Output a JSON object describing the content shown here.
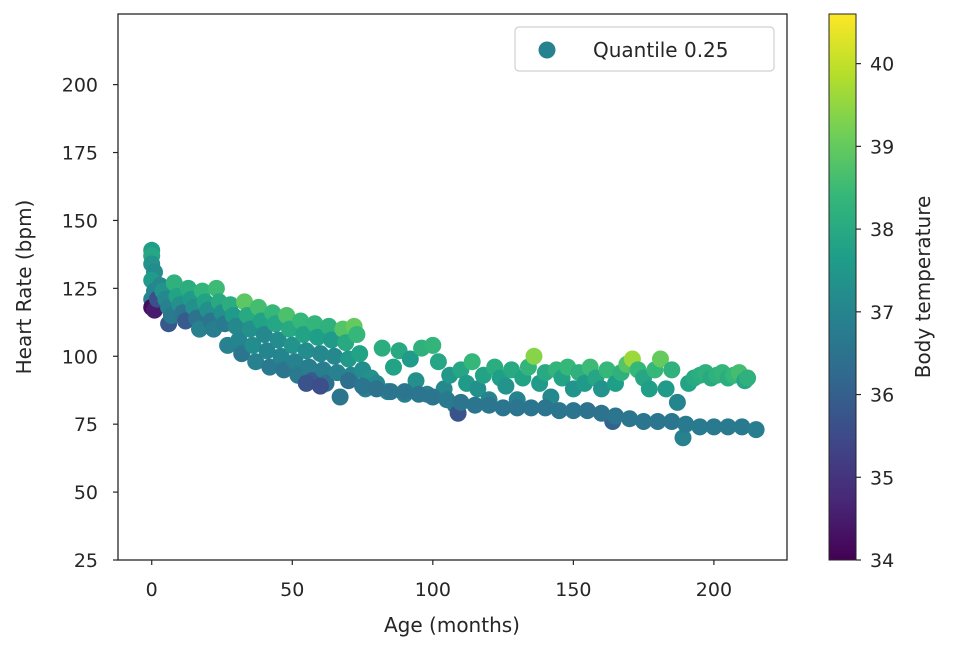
{
  "chart_data": {
    "type": "scatter",
    "title": "",
    "xlabel": "Age (months)",
    "ylabel": "Heart Rate (bpm)",
    "xlim": [
      -12,
      226
    ],
    "ylim": [
      25,
      226
    ],
    "xticks": [
      0,
      50,
      100,
      150,
      200
    ],
    "yticks": [
      25,
      50,
      75,
      100,
      125,
      150,
      175,
      200
    ],
    "legend": {
      "label": "Quantile 0.25",
      "placement": "top-right"
    },
    "colorbar": {
      "label": "Body temperature",
      "min": 34,
      "max": 40.6,
      "ticks": [
        34,
        35,
        36,
        37,
        38,
        39,
        40
      ],
      "colormap": "viridis"
    },
    "colors": {
      "viridis": [
        "#440154",
        "#482878",
        "#3e4989",
        "#31688e",
        "#26828e",
        "#1f9e89",
        "#35b779",
        "#6ece58",
        "#b5de2b",
        "#fde725"
      ],
      "axis": "#262626",
      "legend_marker": "#26828e"
    },
    "points": [
      [
        0,
        139,
        37.7
      ],
      [
        0,
        137,
        37.9
      ],
      [
        0,
        134,
        37.4
      ],
      [
        1,
        131,
        37.2
      ],
      [
        0,
        128,
        37.6
      ],
      [
        1,
        124,
        37.0
      ],
      [
        0,
        121,
        36.9
      ],
      [
        0,
        118,
        34.2
      ],
      [
        1,
        117,
        34.5
      ],
      [
        2,
        121,
        35.6
      ],
      [
        3,
        126,
        37.1
      ],
      [
        4,
        124,
        37.4
      ],
      [
        5,
        121,
        37.1
      ],
      [
        6,
        118,
        36.9
      ],
      [
        6,
        112,
        35.8
      ],
      [
        7,
        115,
        36.7
      ],
      [
        8,
        127,
        38.2
      ],
      [
        9,
        122,
        37.8
      ],
      [
        10,
        119,
        37.3
      ],
      [
        11,
        116,
        36.6
      ],
      [
        12,
        113,
        35.9
      ],
      [
        13,
        125,
        38.1
      ],
      [
        14,
        121,
        37.6
      ],
      [
        15,
        118,
        37.3
      ],
      [
        16,
        114,
        36.5
      ],
      [
        17,
        110,
        36.9
      ],
      [
        18,
        124,
        38.3
      ],
      [
        19,
        120,
        37.8
      ],
      [
        20,
        117,
        37.3
      ],
      [
        21,
        113,
        36.6
      ],
      [
        22,
        110,
        36.8
      ],
      [
        23,
        125,
        38.5
      ],
      [
        24,
        120,
        38.0
      ],
      [
        25,
        116,
        37.3
      ],
      [
        26,
        112,
        36.7
      ],
      [
        27,
        104,
        36.9
      ],
      [
        28,
        119,
        38.1
      ],
      [
        29,
        115,
        37.6
      ],
      [
        30,
        111,
        37.1
      ],
      [
        31,
        106,
        37.0
      ],
      [
        32,
        101,
        36.6
      ],
      [
        33,
        120,
        38.9
      ],
      [
        34,
        115,
        38.0
      ],
      [
        35,
        110,
        37.3
      ],
      [
        36,
        104,
        37.2
      ],
      [
        37,
        98,
        36.9
      ],
      [
        38,
        118,
        38.6
      ],
      [
        39,
        113,
        37.8
      ],
      [
        40,
        108,
        37.1
      ],
      [
        41,
        102,
        37.0
      ],
      [
        42,
        96,
        36.7
      ],
      [
        43,
        116,
        38.4
      ],
      [
        44,
        112,
        37.9
      ],
      [
        45,
        106,
        37.2
      ],
      [
        46,
        100,
        37.0
      ],
      [
        47,
        95,
        36.6
      ],
      [
        48,
        115,
        38.7
      ],
      [
        49,
        110,
        38.0
      ],
      [
        50,
        104,
        37.4
      ],
      [
        51,
        98,
        36.9
      ],
      [
        52,
        93,
        36.7
      ],
      [
        53,
        113,
        38.4
      ],
      [
        54,
        108,
        37.8
      ],
      [
        55,
        102,
        37.2
      ],
      [
        56,
        96,
        36.8
      ],
      [
        57,
        91,
        35.9
      ],
      [
        58,
        112,
        38.3
      ],
      [
        59,
        107,
        37.7
      ],
      [
        60,
        101,
        37.1
      ],
      [
        61,
        95,
        36.8
      ],
      [
        62,
        90,
        36.4
      ],
      [
        63,
        111,
        38.2
      ],
      [
        64,
        106,
        37.6
      ],
      [
        65,
        100,
        37.1
      ],
      [
        66,
        94,
        36.9
      ],
      [
        67,
        85,
        36.6
      ],
      [
        68,
        110,
        38.8
      ],
      [
        69,
        105,
        38.0
      ],
      [
        70,
        99,
        37.5
      ],
      [
        71,
        93,
        37.0
      ],
      [
        72,
        111,
        39.0
      ],
      [
        73,
        108,
        38.4
      ],
      [
        74,
        101,
        37.8
      ],
      [
        75,
        95,
        37.2
      ],
      [
        76,
        88,
        36.9
      ],
      [
        78,
        92,
        37.3
      ],
      [
        80,
        90,
        37.1
      ],
      [
        82,
        103,
        38.1
      ],
      [
        84,
        87,
        37.0
      ],
      [
        86,
        96,
        37.8
      ],
      [
        88,
        102,
        38.0
      ],
      [
        90,
        86,
        36.9
      ],
      [
        92,
        99,
        37.6
      ],
      [
        94,
        91,
        37.3
      ],
      [
        96,
        103,
        38.2
      ],
      [
        98,
        86,
        36.9
      ],
      [
        100,
        104,
        38.3
      ],
      [
        102,
        98,
        37.9
      ],
      [
        104,
        88,
        37.1
      ],
      [
        106,
        93,
        37.5
      ],
      [
        108,
        82,
        36.8
      ],
      [
        109,
        79,
        35.7
      ],
      [
        110,
        95,
        37.9
      ],
      [
        112,
        90,
        37.6
      ],
      [
        114,
        98,
        38.4
      ],
      [
        116,
        88,
        37.3
      ],
      [
        118,
        93,
        37.8
      ],
      [
        120,
        84,
        37.0
      ],
      [
        122,
        96,
        38.1
      ],
      [
        124,
        92,
        37.7
      ],
      [
        126,
        89,
        37.4
      ],
      [
        128,
        95,
        38.0
      ],
      [
        130,
        84,
        36.9
      ],
      [
        132,
        92,
        37.8
      ],
      [
        134,
        96,
        38.3
      ],
      [
        136,
        100,
        39.4
      ],
      [
        138,
        90,
        37.6
      ],
      [
        140,
        94,
        38.0
      ],
      [
        142,
        85,
        37.1
      ],
      [
        144,
        95,
        38.3
      ],
      [
        146,
        92,
        37.8
      ],
      [
        148,
        96,
        38.4
      ],
      [
        150,
        88,
        37.4
      ],
      [
        152,
        94,
        38.2
      ],
      [
        154,
        90,
        37.6
      ],
      [
        156,
        96,
        38.5
      ],
      [
        158,
        92,
        37.9
      ],
      [
        160,
        88,
        37.4
      ],
      [
        162,
        95,
        38.4
      ],
      [
        164,
        76,
        36.1
      ],
      [
        165,
        90,
        37.7
      ],
      [
        167,
        94,
        38.2
      ],
      [
        169,
        97,
        38.8
      ],
      [
        171,
        99,
        39.6
      ],
      [
        173,
        95,
        38.4
      ],
      [
        175,
        92,
        37.9
      ],
      [
        177,
        88,
        37.7
      ],
      [
        179,
        95,
        38.4
      ],
      [
        181,
        99,
        39.0
      ],
      [
        183,
        88,
        37.6
      ],
      [
        185,
        95,
        38.2
      ],
      [
        187,
        83,
        37.0
      ],
      [
        189,
        70,
        36.9
      ],
      [
        191,
        90,
        37.8
      ],
      [
        193,
        92,
        38.0
      ],
      [
        195,
        93,
        38.1
      ],
      [
        197,
        94,
        38.2
      ],
      [
        199,
        92,
        38.0
      ],
      [
        201,
        93,
        38.2
      ],
      [
        203,
        94,
        38.3
      ],
      [
        205,
        92,
        38.1
      ],
      [
        207,
        93,
        38.4
      ],
      [
        209,
        94,
        38.6
      ],
      [
        211,
        91,
        37.9
      ],
      [
        212,
        92,
        38.2
      ],
      [
        55,
        90,
        35.7
      ],
      [
        60,
        89,
        35.6
      ],
      [
        70,
        91,
        36.4
      ],
      [
        75,
        89,
        36.6
      ],
      [
        80,
        88,
        36.5
      ],
      [
        85,
        87,
        36.6
      ],
      [
        90,
        87,
        36.6
      ],
      [
        95,
        86,
        36.6
      ],
      [
        100,
        85,
        36.6
      ],
      [
        105,
        84,
        36.7
      ],
      [
        110,
        83,
        36.6
      ],
      [
        115,
        82,
        36.6
      ],
      [
        120,
        82,
        36.6
      ],
      [
        125,
        81,
        36.6
      ],
      [
        130,
        81,
        36.6
      ],
      [
        135,
        81,
        36.6
      ],
      [
        140,
        81,
        36.6
      ],
      [
        145,
        80,
        36.6
      ],
      [
        150,
        80,
        36.6
      ],
      [
        155,
        80,
        36.5
      ],
      [
        160,
        79,
        36.5
      ],
      [
        165,
        78,
        36.6
      ],
      [
        170,
        77,
        36.6
      ],
      [
        175,
        76,
        36.6
      ],
      [
        180,
        76,
        36.6
      ],
      [
        185,
        76,
        36.6
      ],
      [
        190,
        75,
        36.7
      ],
      [
        195,
        74,
        36.7
      ],
      [
        200,
        74,
        36.7
      ],
      [
        205,
        74,
        36.7
      ],
      [
        210,
        74,
        36.7
      ],
      [
        215,
        73,
        36.8
      ]
    ]
  }
}
